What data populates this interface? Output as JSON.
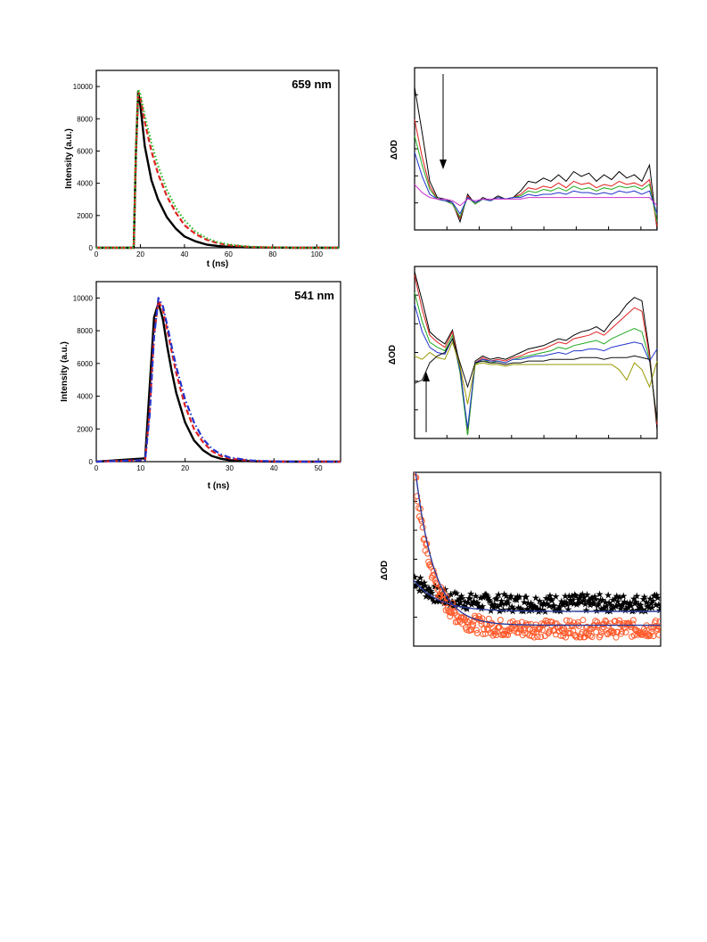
{
  "chart_data": [
    {
      "type": "line",
      "title": "659 nm",
      "xlabel": "t (ns)",
      "ylabel": "Intensity (a.u.)",
      "xlim": [
        0,
        110
      ],
      "ylim": [
        0,
        11000
      ],
      "xticks": [
        0,
        20,
        40,
        60,
        80,
        100
      ],
      "yticks": [
        0,
        2000,
        4000,
        6000,
        8000,
        10000
      ],
      "series": [
        {
          "style": "solid",
          "color": "#000000",
          "x": [
            0,
            17,
            18,
            19,
            20,
            22,
            25,
            28,
            32,
            36,
            40,
            45,
            50,
            55,
            60,
            70,
            80,
            90,
            100,
            110
          ],
          "y": [
            0,
            0,
            6000,
            9700,
            8800,
            6300,
            4200,
            3000,
            1900,
            1200,
            700,
            400,
            200,
            110,
            60,
            20,
            10,
            0,
            0,
            0
          ]
        },
        {
          "style": "dash",
          "color": "#e02020",
          "x": [
            0,
            17,
            18,
            19,
            20,
            22,
            25,
            28,
            32,
            36,
            40,
            45,
            50,
            55,
            60,
            70,
            80,
            90,
            100,
            110
          ],
          "y": [
            0,
            0,
            6000,
            9700,
            9300,
            7800,
            6000,
            4600,
            3200,
            2200,
            1400,
            850,
            500,
            290,
            160,
            50,
            15,
            0,
            0,
            0
          ]
        },
        {
          "style": "dot",
          "color": "#22bb22",
          "x": [
            0,
            17,
            18,
            19,
            20,
            22,
            25,
            28,
            32,
            36,
            40,
            45,
            50,
            55,
            60,
            70,
            80,
            90,
            100,
            110
          ],
          "y": [
            0,
            0,
            6200,
            9800,
            9500,
            8200,
            6500,
            5100,
            3600,
            2500,
            1700,
            1000,
            600,
            350,
            200,
            60,
            20,
            0,
            0,
            0
          ]
        }
      ]
    },
    {
      "type": "line",
      "title": "541 nm",
      "xlabel": "t (ns)",
      "ylabel": "Intensity (a.u.)",
      "xlim": [
        0,
        55
      ],
      "ylim": [
        0,
        11000
      ],
      "xticks": [
        0,
        10,
        20,
        30,
        40,
        50
      ],
      "yticks": [
        0,
        2000,
        4000,
        6000,
        8000,
        10000
      ],
      "series": [
        {
          "style": "solid",
          "color": "#000000",
          "x": [
            0,
            11,
            12,
            13,
            14,
            15,
            16,
            17,
            18,
            20,
            22,
            24,
            26,
            28,
            30,
            35,
            40,
            45,
            55
          ],
          "y": [
            0,
            200,
            4500,
            8800,
            9700,
            8700,
            7000,
            5500,
            4200,
            2400,
            1300,
            700,
            350,
            180,
            90,
            20,
            0,
            0,
            0
          ]
        },
        {
          "style": "dash",
          "color": "#e02020",
          "x": [
            0,
            11,
            12,
            13,
            14,
            15,
            16,
            17,
            18,
            20,
            22,
            24,
            26,
            28,
            30,
            35,
            40,
            45,
            55
          ],
          "y": [
            0,
            100,
            3000,
            7800,
            9800,
            9300,
            8000,
            6700,
            5400,
            3400,
            2000,
            1200,
            650,
            350,
            190,
            50,
            10,
            0,
            0
          ]
        },
        {
          "style": "dashdot",
          "color": "#2233cc",
          "x": [
            0,
            11,
            12,
            13,
            14,
            15,
            16,
            17,
            18,
            20,
            22,
            24,
            26,
            28,
            30,
            35,
            40,
            45,
            55
          ],
          "y": [
            0,
            100,
            2800,
            7600,
            10000,
            9500,
            8300,
            7000,
            5800,
            3800,
            2400,
            1400,
            800,
            450,
            250,
            70,
            15,
            0,
            0
          ]
        }
      ]
    },
    {
      "type": "line",
      "title": "",
      "xlabel": "",
      "ylabel": "ΔOD",
      "xlim": [
        0,
        32
      ],
      "ylim": [
        0,
        1
      ],
      "xtick_count": 7,
      "ytick_count": 5,
      "annotation": "downward arrow",
      "series": [
        {
          "color": "#000000",
          "values": [
            0.88,
            0.6,
            0.3,
            0.2,
            0.19,
            0.17,
            0.05,
            0.22,
            0.16,
            0.2,
            0.18,
            0.21,
            0.19,
            0.2,
            0.24,
            0.3,
            0.29,
            0.32,
            0.3,
            0.34,
            0.3,
            0.36,
            0.33,
            0.35,
            0.3,
            0.34,
            0.31,
            0.36,
            0.32,
            0.34,
            0.3,
            0.4,
            0.0
          ]
        },
        {
          "color": "#e02020",
          "values": [
            0.68,
            0.45,
            0.27,
            0.19,
            0.18,
            0.16,
            0.07,
            0.21,
            0.16,
            0.19,
            0.18,
            0.2,
            0.19,
            0.2,
            0.22,
            0.26,
            0.25,
            0.27,
            0.26,
            0.29,
            0.26,
            0.3,
            0.28,
            0.29,
            0.26,
            0.28,
            0.27,
            0.3,
            0.28,
            0.29,
            0.27,
            0.31,
            0.02
          ]
        },
        {
          "color": "#22aa22",
          "values": [
            0.58,
            0.4,
            0.25,
            0.19,
            0.18,
            0.16,
            0.08,
            0.2,
            0.16,
            0.19,
            0.18,
            0.2,
            0.19,
            0.2,
            0.21,
            0.24,
            0.23,
            0.25,
            0.24,
            0.26,
            0.24,
            0.27,
            0.25,
            0.26,
            0.24,
            0.26,
            0.25,
            0.27,
            0.26,
            0.27,
            0.25,
            0.28,
            0.05
          ]
        },
        {
          "color": "#2233cc",
          "values": [
            0.48,
            0.33,
            0.22,
            0.19,
            0.18,
            0.17,
            0.1,
            0.2,
            0.17,
            0.19,
            0.18,
            0.2,
            0.19,
            0.2,
            0.2,
            0.22,
            0.21,
            0.22,
            0.22,
            0.23,
            0.22,
            0.24,
            0.23,
            0.23,
            0.22,
            0.23,
            0.22,
            0.24,
            0.23,
            0.24,
            0.22,
            0.24,
            0.1
          ]
        },
        {
          "color": "#cc33cc",
          "values": [
            0.28,
            0.23,
            0.2,
            0.19,
            0.19,
            0.18,
            0.15,
            0.19,
            0.18,
            0.19,
            0.19,
            0.19,
            0.19,
            0.19,
            0.19,
            0.2,
            0.2,
            0.2,
            0.2,
            0.2,
            0.2,
            0.2,
            0.2,
            0.2,
            0.2,
            0.2,
            0.2,
            0.2,
            0.2,
            0.2,
            0.2,
            0.2,
            0.15
          ]
        }
      ]
    },
    {
      "type": "line",
      "title": "",
      "xlabel": "",
      "ylabel": "ΔOD",
      "xlim": [
        0,
        32
      ],
      "ylim": [
        0,
        1
      ],
      "xtick_count": 7,
      "ytick_count": 5,
      "annotation": "upward arrow",
      "series": [
        {
          "color": "#000000",
          "values": [
            0.97,
            0.8,
            0.62,
            0.58,
            0.55,
            0.63,
            0.42,
            0.02,
            0.45,
            0.48,
            0.46,
            0.47,
            0.46,
            0.48,
            0.5,
            0.52,
            0.53,
            0.54,
            0.56,
            0.58,
            0.57,
            0.6,
            0.62,
            0.63,
            0.65,
            0.62,
            0.68,
            0.72,
            0.78,
            0.82,
            0.8,
            0.5,
            0.05
          ]
        },
        {
          "color": "#e02020",
          "values": [
            0.95,
            0.75,
            0.6,
            0.56,
            0.53,
            0.62,
            0.4,
            0.04,
            0.44,
            0.47,
            0.45,
            0.46,
            0.45,
            0.47,
            0.48,
            0.5,
            0.51,
            0.52,
            0.54,
            0.56,
            0.55,
            0.58,
            0.59,
            0.6,
            0.62,
            0.6,
            0.64,
            0.68,
            0.72,
            0.76,
            0.74,
            0.48,
            0.08
          ]
        },
        {
          "color": "#22aa22",
          "values": [
            0.85,
            0.68,
            0.56,
            0.53,
            0.51,
            0.6,
            0.38,
            0.02,
            0.43,
            0.46,
            0.44,
            0.45,
            0.44,
            0.46,
            0.47,
            0.48,
            0.49,
            0.5,
            0.51,
            0.53,
            0.52,
            0.54,
            0.55,
            0.56,
            0.57,
            0.55,
            0.58,
            0.6,
            0.62,
            0.64,
            0.62,
            0.46,
            0.1
          ]
        },
        {
          "color": "#2233cc",
          "values": [
            0.78,
            0.62,
            0.53,
            0.5,
            0.49,
            0.58,
            0.4,
            0.06,
            0.44,
            0.46,
            0.45,
            0.45,
            0.44,
            0.46,
            0.46,
            0.47,
            0.48,
            0.48,
            0.49,
            0.5,
            0.49,
            0.51,
            0.51,
            0.52,
            0.52,
            0.51,
            0.53,
            0.54,
            0.55,
            0.56,
            0.55,
            0.45,
            0.52
          ]
        },
        {
          "color": "#999900",
          "values": [
            0.48,
            0.46,
            0.5,
            0.47,
            0.46,
            0.56,
            0.42,
            0.2,
            0.43,
            0.44,
            0.43,
            0.43,
            0.42,
            0.43,
            0.43,
            0.43,
            0.43,
            0.43,
            0.43,
            0.43,
            0.43,
            0.43,
            0.43,
            0.43,
            0.43,
            0.43,
            0.43,
            0.4,
            0.34,
            0.44,
            0.4,
            0.3,
            0.45
          ]
        },
        {
          "color": "#111111",
          "values": [
            0.32,
            0.34,
            0.44,
            0.48,
            0.5,
            0.58,
            0.44,
            0.3,
            0.44,
            0.45,
            0.44,
            0.44,
            0.43,
            0.44,
            0.44,
            0.45,
            0.45,
            0.45,
            0.46,
            0.46,
            0.46,
            0.46,
            0.47,
            0.47,
            0.47,
            0.46,
            0.47,
            0.47,
            0.47,
            0.48,
            0.47,
            0.46,
            0.1
          ]
        }
      ]
    },
    {
      "type": "scatter",
      "title": "",
      "xlabel": "",
      "ylabel": "ΔOD",
      "xlim": [
        0,
        1
      ],
      "ylim": [
        0,
        1
      ],
      "ytick_count": 5,
      "series": [
        {
          "marker": "star",
          "color": "#000000",
          "decay": {
            "a": 0.15,
            "tau": 0.08,
            "c": 0.25,
            "noise": 0.05
          }
        },
        {
          "marker": "circle",
          "color": "#ff5a2a",
          "decay": {
            "a": 0.95,
            "tau": 0.07,
            "c": 0.1,
            "noise": 0.05
          }
        },
        {
          "style": "fit",
          "color": "#2a3a99",
          "decay": {
            "a": 0.18,
            "tau": 0.1,
            "c": 0.2
          }
        },
        {
          "style": "fit",
          "color": "#2a3a99",
          "decay": {
            "a": 0.98,
            "tau": 0.075,
            "c": 0.12
          }
        }
      ]
    }
  ]
}
